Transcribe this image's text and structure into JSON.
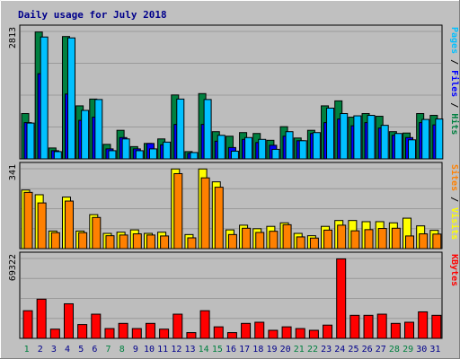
{
  "title": "Daily usage for July 2018",
  "colors": {
    "background": "#c0c0c0",
    "panel": "#bdbdbd",
    "hits": "#008040",
    "files": "#0080ff",
    "pages": "#00c0ff",
    "visits": "#ffff00",
    "sites": "#ff8000",
    "kbytes": "#ff0000",
    "weekday_label": "#00008b",
    "weekend_label": "#008040",
    "title": "#00008b"
  },
  "chart_data": [
    {
      "type": "bar",
      "name": "hits-files-pages",
      "ymax_label": "2813",
      "ylim": [
        0,
        2813
      ],
      "legend": [
        {
          "text": "Pages",
          "color": "#00c0ff"
        },
        {
          "text": " / ",
          "color": "#000000"
        },
        {
          "text": "Files",
          "color": "#0000ff"
        },
        {
          "text": " / ",
          "color": "#000000"
        },
        {
          "text": "Hits",
          "color": "#008040"
        }
      ],
      "x": [
        1,
        2,
        3,
        4,
        5,
        6,
        7,
        8,
        9,
        10,
        11,
        12,
        13,
        14,
        15,
        16,
        17,
        18,
        19,
        20,
        21,
        22,
        23,
        24,
        25,
        26,
        27,
        28,
        29,
        30,
        31
      ],
      "series": [
        {
          "name": "Hits",
          "color": "#008040",
          "values": [
            1000,
            2800,
            240,
            2700,
            1170,
            1320,
            320,
            630,
            270,
            340,
            440,
            1410,
            160,
            1440,
            600,
            500,
            580,
            560,
            410,
            710,
            460,
            630,
            1170,
            1280,
            920,
            1000,
            940,
            600,
            570,
            1000,
            960
          ]
        },
        {
          "name": "Files",
          "color": "#0000ff",
          "values": [
            800,
            1880,
            180,
            1430,
            850,
            920,
            220,
            470,
            220,
            340,
            310,
            760,
            120,
            760,
            390,
            250,
            430,
            360,
            300,
            500,
            400,
            560,
            800,
            880,
            730,
            800,
            680,
            520,
            470,
            800,
            750
          ]
        },
        {
          "name": "Pages",
          "color": "#00c0ff",
          "values": [
            790,
            2690,
            160,
            2670,
            1070,
            1310,
            180,
            440,
            180,
            220,
            370,
            1320,
            140,
            1310,
            520,
            170,
            470,
            430,
            210,
            600,
            400,
            580,
            1120,
            1000,
            950,
            960,
            740,
            560,
            420,
            870,
            880
          ]
        }
      ]
    },
    {
      "type": "bar",
      "name": "visits-sites",
      "ymax_label": "341",
      "ylim": [
        0,
        341
      ],
      "legend": [
        {
          "text": "Sites",
          "color": "#ff8000"
        },
        {
          "text": " / ",
          "color": "#000000"
        },
        {
          "text": "Visits",
          "color": "#ffff00"
        }
      ],
      "x": [
        1,
        2,
        3,
        4,
        5,
        6,
        7,
        8,
        9,
        10,
        11,
        12,
        13,
        14,
        15,
        16,
        17,
        18,
        19,
        20,
        21,
        22,
        23,
        24,
        25,
        26,
        27,
        28,
        29,
        30,
        31
      ],
      "series": [
        {
          "name": "Visits",
          "color": "#ffff00",
          "values": [
            250,
            230,
            75,
            220,
            75,
            145,
            65,
            70,
            80,
            65,
            70,
            340,
            60,
            340,
            285,
            80,
            100,
            85,
            95,
            110,
            65,
            55,
            95,
            120,
            120,
            115,
            115,
            110,
            130,
            97,
            78
          ]
        },
        {
          "name": "Sites",
          "color": "#ff8000",
          "values": [
            240,
            195,
            68,
            203,
            68,
            133,
            55,
            58,
            63,
            58,
            54,
            320,
            46,
            302,
            262,
            60,
            87,
            69,
            74,
            102,
            50,
            45,
            79,
            100,
            76,
            81,
            86,
            87,
            54,
            63,
            62
          ]
        }
      ]
    },
    {
      "type": "bar",
      "name": "kbytes",
      "ymax_label": "69322",
      "ylim": [
        0,
        69322
      ],
      "legend": [
        {
          "text": "KBytes",
          "color": "#ff0000"
        }
      ],
      "x": [
        1,
        2,
        3,
        4,
        5,
        6,
        7,
        8,
        9,
        10,
        11,
        12,
        13,
        14,
        15,
        16,
        17,
        18,
        19,
        20,
        21,
        22,
        23,
        24,
        25,
        26,
        27,
        28,
        29,
        30,
        31
      ],
      "series": [
        {
          "name": "KBytes",
          "color": "#ff0000",
          "values": [
            24000,
            34000,
            8000,
            30000,
            12000,
            21000,
            8500,
            13000,
            8500,
            13000,
            8000,
            21000,
            5000,
            24000,
            10000,
            5000,
            13000,
            14000,
            7000,
            10000,
            8500,
            7000,
            11500,
            69000,
            20000,
            20000,
            21000,
            13000,
            14000,
            23000,
            20000
          ]
        }
      ]
    }
  ],
  "x_axis": {
    "labels": [
      {
        "text": "1",
        "color": "#008040"
      },
      {
        "text": "2",
        "color": "#00008b"
      },
      {
        "text": "3",
        "color": "#00008b"
      },
      {
        "text": "4",
        "color": "#00008b"
      },
      {
        "text": "5",
        "color": "#00008b"
      },
      {
        "text": "6",
        "color": "#00008b"
      },
      {
        "text": "7",
        "color": "#008040"
      },
      {
        "text": "8",
        "color": "#008040"
      },
      {
        "text": "9",
        "color": "#00008b"
      },
      {
        "text": "10",
        "color": "#00008b"
      },
      {
        "text": "11",
        "color": "#00008b"
      },
      {
        "text": "12",
        "color": "#00008b"
      },
      {
        "text": "13",
        "color": "#00008b"
      },
      {
        "text": "14",
        "color": "#008040"
      },
      {
        "text": "15",
        "color": "#008040"
      },
      {
        "text": "16",
        "color": "#00008b"
      },
      {
        "text": "17",
        "color": "#00008b"
      },
      {
        "text": "18",
        "color": "#00008b"
      },
      {
        "text": "19",
        "color": "#00008b"
      },
      {
        "text": "20",
        "color": "#00008b"
      },
      {
        "text": "21",
        "color": "#008040"
      },
      {
        "text": "22",
        "color": "#008040"
      },
      {
        "text": "23",
        "color": "#00008b"
      },
      {
        "text": "24",
        "color": "#00008b"
      },
      {
        "text": "25",
        "color": "#00008b"
      },
      {
        "text": "26",
        "color": "#00008b"
      },
      {
        "text": "27",
        "color": "#00008b"
      },
      {
        "text": "28",
        "color": "#008040"
      },
      {
        "text": "29",
        "color": "#008040"
      },
      {
        "text": "30",
        "color": "#00008b"
      },
      {
        "text": "31",
        "color": "#00008b"
      }
    ]
  }
}
